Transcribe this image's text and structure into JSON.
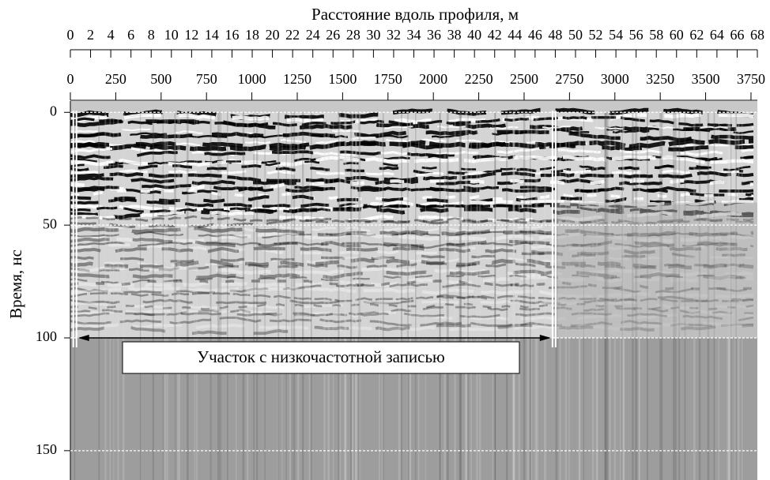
{
  "chart_data": {
    "type": "radargram",
    "title": "Расстояние вдоль профиля, м",
    "ylabel": "Время, нс",
    "x2lim": [
      0,
      68
    ],
    "x2ticks": [
      0,
      2,
      4,
      6,
      8,
      10,
      12,
      14,
      16,
      18,
      20,
      22,
      24,
      26,
      28,
      30,
      32,
      34,
      36,
      38,
      40,
      42,
      44,
      46,
      48,
      50,
      52,
      54,
      56,
      58,
      60,
      62,
      64,
      66,
      68
    ],
    "xlim": [
      0,
      3785
    ],
    "xticks": [
      0,
      250,
      500,
      750,
      1000,
      1250,
      1500,
      1750,
      2000,
      2250,
      2500,
      2750,
      3000,
      3250,
      3500,
      3750
    ],
    "ylim": [
      -5,
      163
    ],
    "yticks": [
      0,
      50,
      100,
      150
    ],
    "grid": true,
    "annotation": {
      "text": "Участок с низкочастотной записью",
      "span_x": [
        25,
        2665
      ],
      "y": 100
    }
  }
}
